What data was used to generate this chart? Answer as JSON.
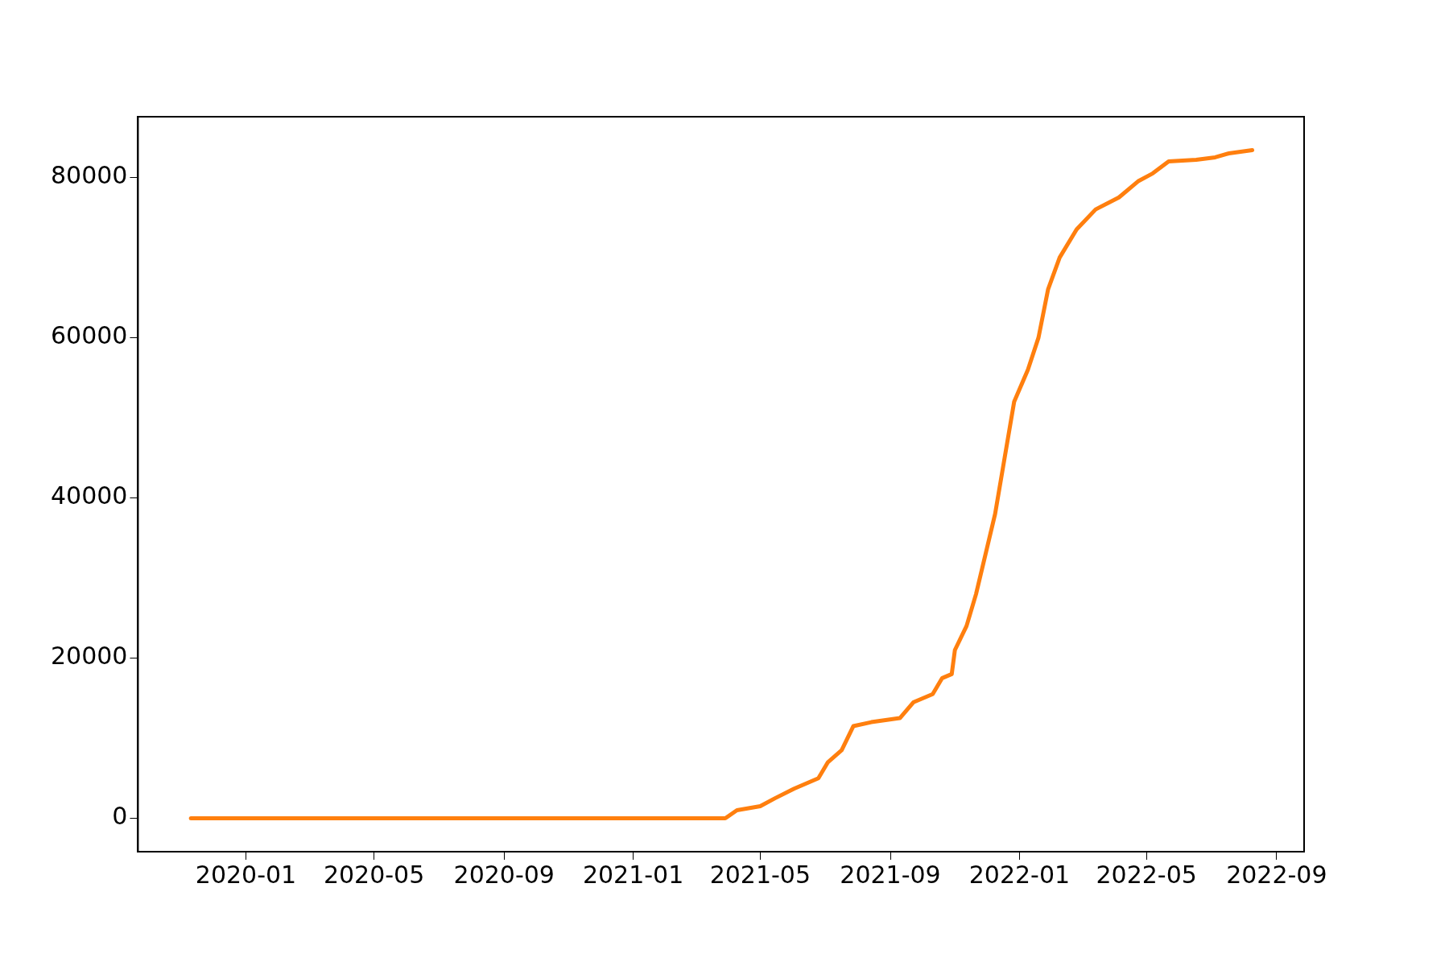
{
  "chart_data": {
    "type": "line",
    "x": [
      "2019-11-10",
      "2021-03-29",
      "2021-04-09",
      "2021-05-01",
      "2021-05-15",
      "2021-06-02",
      "2021-06-25",
      "2021-07-04",
      "2021-07-17",
      "2021-07-28",
      "2021-08-14",
      "2021-09-10",
      "2021-09-23",
      "2021-10-11",
      "2021-10-20",
      "2021-10-29",
      "2021-11-01",
      "2021-11-12",
      "2021-11-21",
      "2021-11-30",
      "2021-12-09",
      "2021-12-18",
      "2021-12-27",
      "2022-01-09",
      "2022-01-19",
      "2022-01-28",
      "2022-02-08",
      "2022-02-24",
      "2022-03-14",
      "2022-04-05",
      "2022-04-23",
      "2022-05-07",
      "2022-05-22",
      "2022-06-17",
      "2022-07-05",
      "2022-07-18",
      "2022-08-09"
    ],
    "series": [
      {
        "color": "#ff7f0e",
        "values": [
          0,
          0,
          1000,
          1500,
          2500,
          3700,
          5000,
          7000,
          8500,
          11500,
          12000,
          12500,
          14500,
          15500,
          17500,
          18000,
          21000,
          24000,
          28000,
          33000,
          38000,
          45000,
          52000,
          56000,
          60000,
          66000,
          70000,
          73500,
          76000,
          77500,
          79500,
          80500,
          82000,
          82200,
          82500,
          83000,
          83400
        ]
      }
    ],
    "xlim": [
      "2019-09-21",
      "2022-09-27"
    ],
    "xticks": [
      "2020-01",
      "2020-05",
      "2020-09",
      "2021-01",
      "2021-05",
      "2021-09",
      "2022-01",
      "2022-05",
      "2022-09"
    ],
    "ylim": [
      -4170,
      87570
    ],
    "yticks": [
      0,
      20000,
      40000,
      60000,
      80000
    ],
    "grid": false,
    "legend": false,
    "marker": "none",
    "line_style": "solid"
  }
}
